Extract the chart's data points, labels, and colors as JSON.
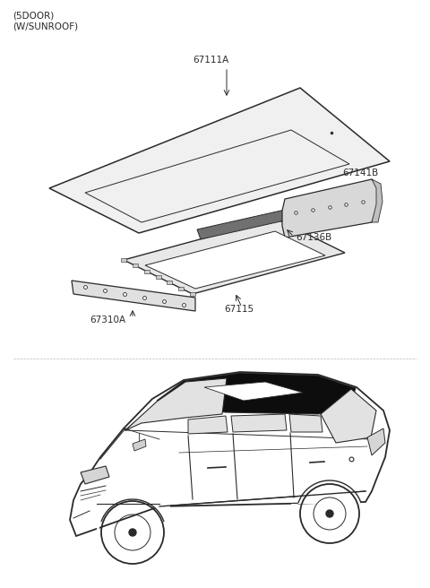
{
  "title_line1": "(5DOOR)",
  "title_line2": "(W/SUNROOF)",
  "bg_color": "#ffffff",
  "line_color": "#2a2a2a",
  "label_67111A": "67111A",
  "label_67141B": "67141B",
  "label_67136B": "67136B",
  "label_67310A": "67310A",
  "label_67115": "67115"
}
